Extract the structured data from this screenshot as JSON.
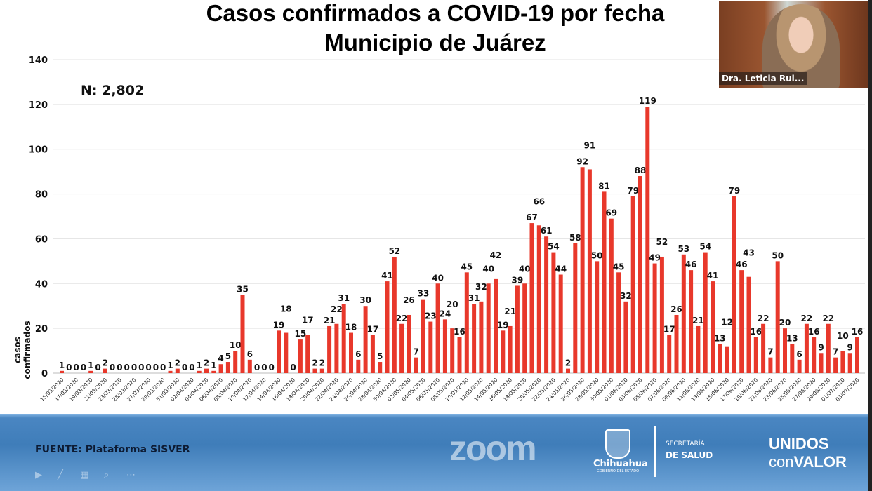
{
  "slide": {
    "title_line1": "Casos confirmados a COVID-19 por fecha",
    "title_line2": "Municipio de Juárez",
    "total_label": "N: 2,802",
    "source": "FUENTE: Plataforma SISVER"
  },
  "webcam": {
    "participant_name": "Dra. Leticia Rui..."
  },
  "banner": {
    "state_name": "Chihuahua",
    "state_sub": "GOBIERNO DEL ESTADO",
    "secretaria": "SECRETARÍA",
    "salud": "DE SALUD",
    "zoom_watermark": "zoom",
    "unidos": "UNIDOS",
    "con": "con",
    "valor": "VALOR"
  },
  "colors": {
    "bar": "#e8382b",
    "grid": "#e3e3e3",
    "banner": "#3f7db9"
  },
  "chart_data": {
    "type": "bar",
    "title": "Casos confirmados a COVID-19 por fecha",
    "subtitle": "Municipio de Juárez",
    "xlabel": "",
    "ylabel": "casos confirmados",
    "ylim": [
      0,
      140
    ],
    "yticks": [
      0,
      20,
      40,
      60,
      80,
      100,
      120,
      140
    ],
    "grid": true,
    "categories": [
      "15/03/2020",
      "16/03/2020",
      "17/03/2020",
      "18/03/2020",
      "19/03/2020",
      "20/03/2020",
      "21/03/2020",
      "22/03/2020",
      "23/03/2020",
      "24/03/2020",
      "25/03/2020",
      "26/03/2020",
      "27/03/2020",
      "28/03/2020",
      "29/03/2020",
      "30/03/2020",
      "31/03/2020",
      "01/04/2020",
      "02/04/2020",
      "03/04/2020",
      "04/04/2020",
      "05/04/2020",
      "06/04/2020",
      "07/04/2020",
      "08/04/2020",
      "09/04/2020",
      "10/04/2020",
      "11/04/2020",
      "12/04/2020",
      "13/04/2020",
      "14/04/2020",
      "15/04/2020",
      "16/04/2020",
      "17/04/2020",
      "18/04/2020",
      "19/04/2020",
      "20/04/2020",
      "21/04/2020",
      "22/04/2020",
      "23/04/2020",
      "24/04/2020",
      "25/04/2020",
      "26/04/2020",
      "27/04/2020",
      "28/04/2020",
      "29/04/2020",
      "30/04/2020",
      "01/05/2020",
      "02/05/2020",
      "03/05/2020",
      "04/05/2020",
      "05/05/2020",
      "06/05/2020",
      "07/05/2020",
      "08/05/2020",
      "09/05/2020",
      "10/05/2020",
      "11/05/2020",
      "12/05/2020",
      "13/05/2020",
      "14/05/2020",
      "15/05/2020",
      "16/05/2020",
      "17/05/2020",
      "18/05/2020",
      "19/05/2020",
      "20/05/2020",
      "21/05/2020",
      "22/05/2020",
      "23/05/2020",
      "24/05/2020",
      "25/05/2020",
      "26/05/2020",
      "27/05/2020",
      "28/05/2020",
      "29/05/2020",
      "30/05/2020",
      "31/05/2020",
      "01/06/2020",
      "02/06/2020",
      "03/06/2020",
      "04/06/2020",
      "05/06/2020",
      "06/06/2020",
      "07/06/2020",
      "08/06/2020",
      "09/06/2020",
      "10/06/2020",
      "11/06/2020",
      "12/06/2020",
      "13/06/2020",
      "14/06/2020",
      "15/06/2020",
      "16/06/2020",
      "17/06/2020",
      "18/06/2020",
      "19/06/2020",
      "20/06/2020",
      "21/06/2020",
      "22/06/2020",
      "23/06/2020",
      "24/06/2020",
      "25/06/2020",
      "26/06/2020",
      "27/06/2020",
      "28/06/2020",
      "29/06/2020",
      "30/06/2020",
      "01/07/2020",
      "02/07/2020",
      "03/07/2020"
    ],
    "values": [
      1,
      0,
      0,
      0,
      1,
      0,
      2,
      0,
      0,
      0,
      0,
      0,
      0,
      0,
      0,
      1,
      2,
      0,
      0,
      1,
      2,
      1,
      4,
      5,
      10,
      35,
      6,
      0,
      0,
      0,
      19,
      18,
      0,
      15,
      17,
      2,
      2,
      21,
      22,
      31,
      18,
      6,
      30,
      17,
      5,
      41,
      52,
      22,
      26,
      7,
      33,
      23,
      40,
      24,
      20,
      16,
      45,
      31,
      32,
      40,
      42,
      19,
      21,
      39,
      40,
      67,
      66,
      61,
      54,
      44,
      2,
      58,
      92,
      91,
      50,
      81,
      69,
      45,
      32,
      79,
      88,
      119,
      49,
      52,
      17,
      26,
      53,
      46,
      21,
      54,
      41,
      13,
      12,
      79,
      46,
      43,
      16,
      22,
      7,
      50,
      20,
      13,
      6,
      22,
      16,
      9,
      22,
      7,
      10,
      9,
      16
    ],
    "total": 2802,
    "tick_label_every": 2
  }
}
